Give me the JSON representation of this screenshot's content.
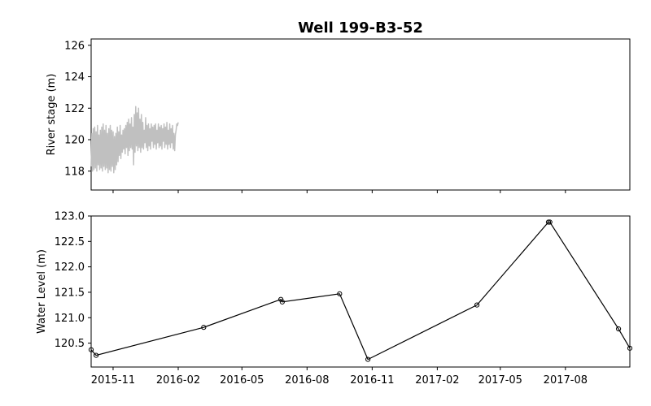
{
  "chart_data": [
    {
      "type": "line",
      "title": "Well 199-B3-52",
      "xlabel": "",
      "ylabel": "River stage (m)",
      "ylim": [
        116.8,
        126.4
      ],
      "yticks": [
        "118",
        "120",
        "122",
        "124",
        "126"
      ],
      "xlim": [
        "2015-10-01",
        "2017-10-31"
      ],
      "x_tick_labels_shown": false,
      "grid": false,
      "series": [
        {
          "color": "#c0c0c0",
          "x": [
            "2015-10-01",
            "2015-10-02",
            "2015-10-03",
            "2015-10-04",
            "2015-10-05",
            "2015-10-06",
            "2015-10-07",
            "2015-10-08",
            "2015-10-09",
            "2015-10-10",
            "2015-10-11",
            "2015-10-12",
            "2015-10-13",
            "2015-10-14",
            "2015-10-15",
            "2015-10-16",
            "2015-10-17",
            "2015-10-18",
            "2015-10-19",
            "2015-10-20",
            "2015-10-21",
            "2015-10-22",
            "2015-10-23",
            "2015-10-24",
            "2015-10-25",
            "2015-10-26",
            "2015-10-27",
            "2015-10-28",
            "2015-10-29",
            "2015-10-30",
            "2015-10-31",
            "2015-11-01",
            "2015-11-02",
            "2015-11-03",
            "2015-11-04",
            "2015-11-05",
            "2015-11-06",
            "2015-11-07",
            "2015-11-08",
            "2015-11-09",
            "2015-11-10",
            "2015-11-11",
            "2015-11-12",
            "2015-11-13",
            "2015-11-14",
            "2015-11-15",
            "2015-11-16",
            "2015-11-17",
            "2015-11-18",
            "2015-11-19",
            "2015-11-20",
            "2015-11-21",
            "2015-11-22",
            "2015-11-23",
            "2015-11-24",
            "2015-11-25",
            "2015-11-26",
            "2015-11-27",
            "2015-11-28",
            "2015-11-29",
            "2015-11-30",
            "2015-12-01",
            "2015-12-02",
            "2015-12-03",
            "2015-12-04",
            "2015-12-05",
            "2015-12-06",
            "2015-12-07",
            "2015-12-08",
            "2015-12-09",
            "2015-12-10",
            "2015-12-11",
            "2015-12-12",
            "2015-12-13",
            "2015-12-14",
            "2015-12-15",
            "2015-12-16",
            "2015-12-17",
            "2015-12-18",
            "2015-12-19",
            "2015-12-20",
            "2015-12-21",
            "2015-12-22",
            "2015-12-23",
            "2015-12-24",
            "2015-12-25",
            "2015-12-26",
            "2015-12-27",
            "2015-12-28",
            "2015-12-29",
            "2015-12-30",
            "2015-12-31",
            "2016-01-01",
            "2016-01-02",
            "2016-01-03",
            "2016-01-04",
            "2016-01-05",
            "2016-01-06",
            "2016-01-07",
            "2016-01-08",
            "2016-01-09",
            "2016-01-10",
            "2016-01-11",
            "2016-01-12",
            "2016-01-13",
            "2016-01-14",
            "2016-01-15",
            "2016-01-16",
            "2016-01-17",
            "2016-01-18",
            "2016-01-19",
            "2016-01-20",
            "2016-01-21",
            "2016-01-22",
            "2016-01-23",
            "2016-01-24",
            "2016-01-25",
            "2016-01-26",
            "2016-01-27",
            "2016-01-28",
            "2016-01-29",
            "2016-01-30",
            "2016-01-31",
            "2016-02-01"
          ],
          "values": [
            118.3,
            120.4,
            118.0,
            120.7,
            118.1,
            120.8,
            118.2,
            120.5,
            118.0,
            120.9,
            118.4,
            120.3,
            118.1,
            120.6,
            118.2,
            120.8,
            118.0,
            121.0,
            118.3,
            120.6,
            118.1,
            120.9,
            118.2,
            120.4,
            117.9,
            120.7,
            118.1,
            120.9,
            118.0,
            120.6,
            118.3,
            120.5,
            117.9,
            120.2,
            118.1,
            120.4,
            118.4,
            120.8,
            118.6,
            120.5,
            119.0,
            120.9,
            118.8,
            120.3,
            119.2,
            120.6,
            119.4,
            120.7,
            119.1,
            120.9,
            119.5,
            121.1,
            119.0,
            121.3,
            119.3,
            121.0,
            119.5,
            121.4,
            119.4,
            120.8,
            118.4,
            121.6,
            119.2,
            122.1,
            119.6,
            121.7,
            119.3,
            122.0,
            119.5,
            121.3,
            119.2,
            121.6,
            119.5,
            121.1,
            119.4,
            120.6,
            119.8,
            121.4,
            119.5,
            120.9,
            119.3,
            121.0,
            119.6,
            120.7,
            119.4,
            121.0,
            119.9,
            120.8,
            119.5,
            120.9,
            119.7,
            121.0,
            119.4,
            120.6,
            119.8,
            121.0,
            119.5,
            120.8,
            119.6,
            120.9,
            119.4,
            120.7,
            119.9,
            121.0,
            119.5,
            120.8,
            119.7,
            121.1,
            119.4,
            120.6,
            119.7,
            121.0,
            119.5,
            120.7,
            119.8,
            120.9,
            119.4,
            120.4,
            119.3,
            120.3,
            120.6,
            121.0,
            120.9,
            121.1
          ]
        }
      ]
    },
    {
      "type": "line",
      "title": "",
      "xlabel": "",
      "ylabel": "Water Level (m)",
      "ylim": [
        120.03,
        123.0
      ],
      "yticks": [
        "120.5",
        "121.0",
        "121.5",
        "122.0",
        "122.5",
        "123.0"
      ],
      "xlim": [
        "2015-10-01",
        "2017-10-31"
      ],
      "xticks": [
        {
          "date": "2015-11-01",
          "label": "2015-11"
        },
        {
          "date": "2016-02-01",
          "label": "2016-02"
        },
        {
          "date": "2016-05-01",
          "label": "2016-05"
        },
        {
          "date": "2016-08-01",
          "label": "2016-08"
        },
        {
          "date": "2016-11-01",
          "label": "2016-11"
        },
        {
          "date": "2017-02-01",
          "label": "2017-02"
        },
        {
          "date": "2017-05-01",
          "label": "2017-05"
        },
        {
          "date": "2017-08-01",
          "label": "2017-08"
        }
      ],
      "grid": false,
      "series": [
        {
          "color": "#000000",
          "marker": "open-circle",
          "x": [
            "2015-10-01",
            "2015-10-08",
            "2016-03-08",
            "2016-06-25",
            "2016-06-27",
            "2016-09-16",
            "2016-10-26",
            "2017-03-29",
            "2017-07-08",
            "2017-07-10",
            "2017-10-15",
            "2017-10-31"
          ],
          "values": [
            120.37,
            120.26,
            120.81,
            121.36,
            121.31,
            121.47,
            120.18,
            121.25,
            122.88,
            122.88,
            120.78,
            120.4
          ]
        }
      ]
    }
  ]
}
